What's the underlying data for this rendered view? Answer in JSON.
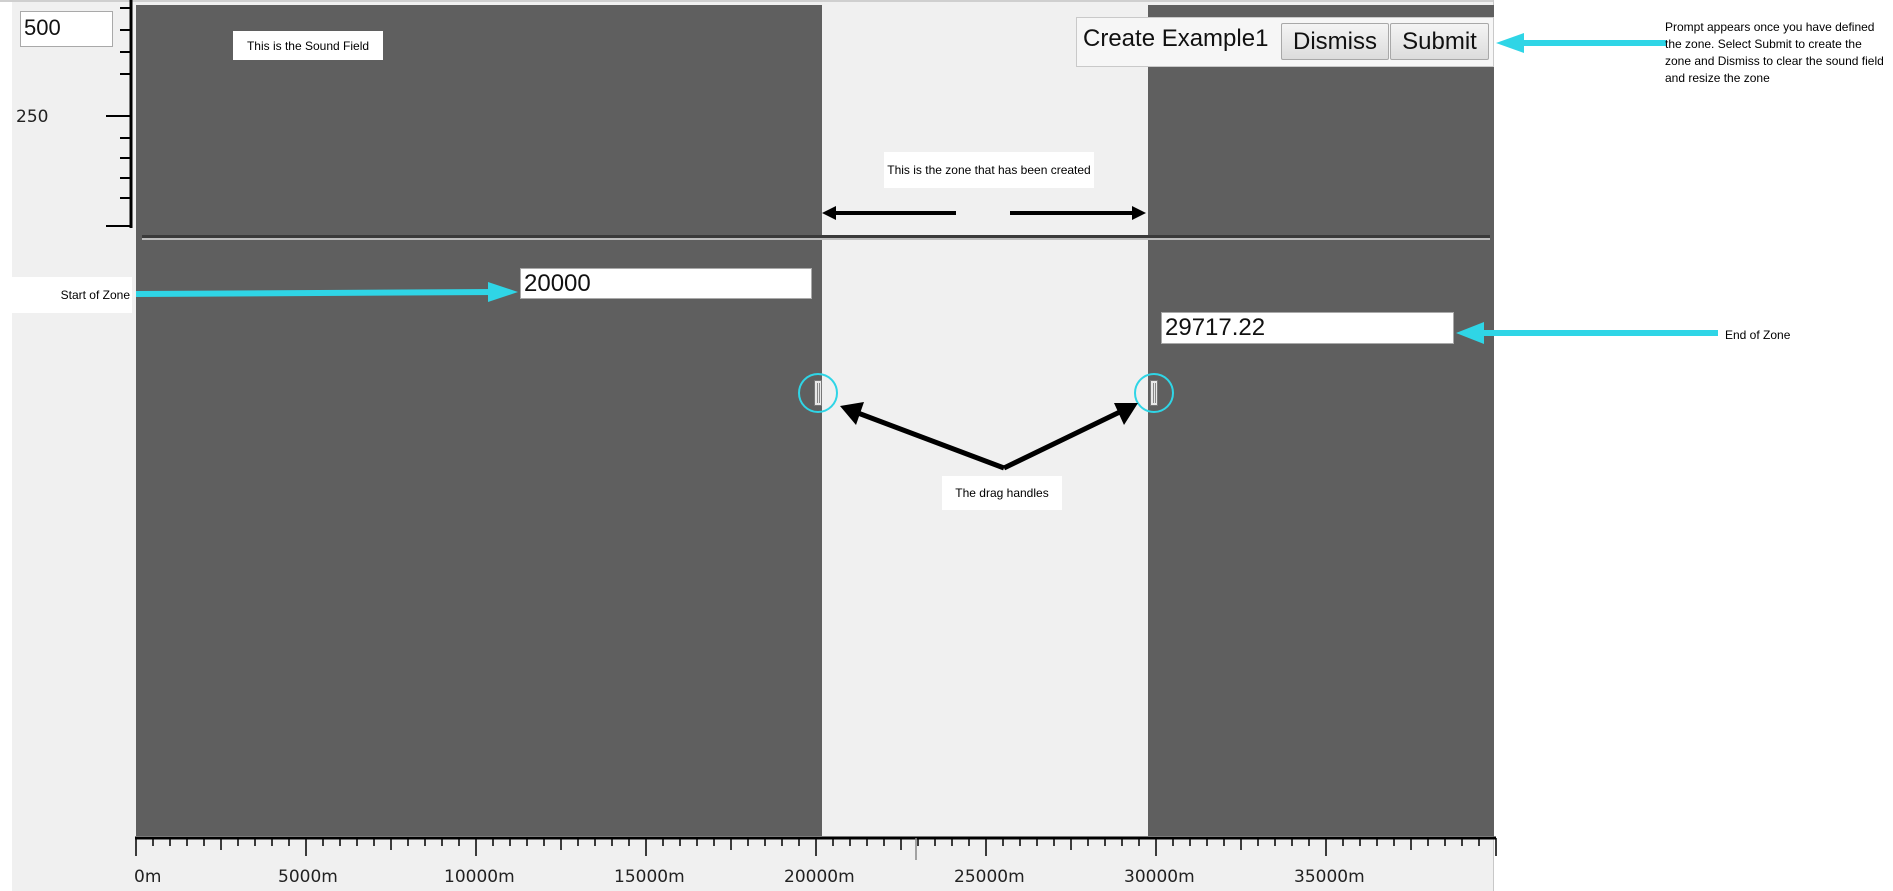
{
  "vertical_ruler": {
    "max_input_value": "500",
    "tick_label_250": "250"
  },
  "horizontal_axis": {
    "tick_labels": [
      "0m",
      "5000m",
      "10000m",
      "15000m",
      "20000m",
      "25000m",
      "30000m",
      "35000m"
    ]
  },
  "sound_field": {
    "label": "This is the Sound Field"
  },
  "zone": {
    "label": "This is the zone that has been created",
    "start_value": "20000",
    "end_value": "29717.22"
  },
  "prompt": {
    "name_text": "Create Example1",
    "dismiss_label": "Dismiss",
    "submit_label": "Submit"
  },
  "annotations": {
    "start_of_zone": "Start of Zone",
    "end_of_zone": "End of Zone",
    "drag_handles": "The drag handles",
    "prompt_note": "Prompt appears once you have defined the zone. Select Submit to create the zone and Dismiss to clear the sound field and resize the zone"
  },
  "colors": {
    "sound_field": "#5f5f5f",
    "zone": "#f0f0f0",
    "annotation_arrow": "#2fd5e6",
    "pointer_arrow": "#000000"
  }
}
